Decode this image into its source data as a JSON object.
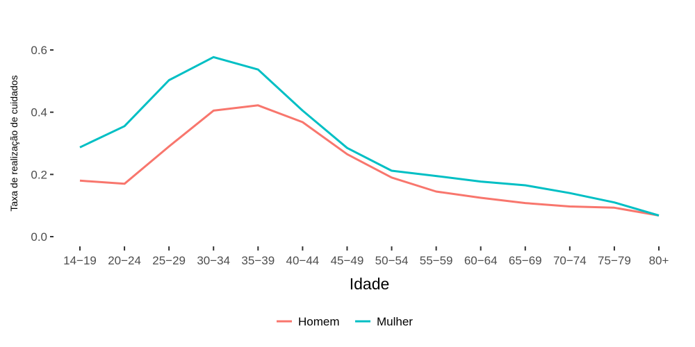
{
  "chart_data": {
    "type": "line",
    "xlabel": "Idade",
    "ylabel": "Taxa de realização de cuidados",
    "categories": [
      "14−19",
      "20−24",
      "25−29",
      "30−34",
      "35−39",
      "40−44",
      "45−49",
      "50−54",
      "55−59",
      "60−64",
      "65−69",
      "70−74",
      "75−79",
      "80+"
    ],
    "ylim": [
      0,
      0.6
    ],
    "yticks": [
      0.0,
      0.2,
      0.4,
      0.6
    ],
    "ytick_labels": [
      "0.0",
      "0.2",
      "0.4",
      "0.6"
    ],
    "grid": false,
    "legend_position": "bottom",
    "series": [
      {
        "name": "Homem",
        "color": "#F8766D",
        "values": [
          0.18,
          0.17,
          0.29,
          0.405,
          0.422,
          0.368,
          0.265,
          0.19,
          0.145,
          0.125,
          0.108,
          0.097,
          0.093,
          0.068
        ]
      },
      {
        "name": "Mulher",
        "color": "#00BFC4",
        "values": [
          0.287,
          0.355,
          0.503,
          0.577,
          0.537,
          0.405,
          0.285,
          0.212,
          0.195,
          0.177,
          0.165,
          0.14,
          0.11,
          0.068
        ]
      }
    ]
  }
}
